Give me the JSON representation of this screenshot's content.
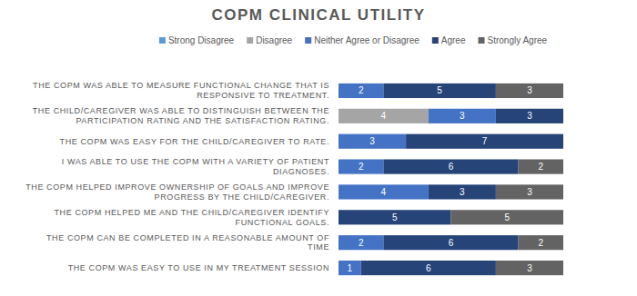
{
  "chart_data": {
    "type": "bar",
    "title": "COPM CLINICAL UTILITY",
    "orientation": "horizontal",
    "stacked": true,
    "data_labels": true,
    "legend": "top",
    "grid": false,
    "tick_labels": "y",
    "categories": [
      "THE COPM WAS ABLE TO MEASURE FUNCTIONAL CHANGE THAT IS RESPONSIVE TO TREATMENT.",
      "THE CHILD/CAREGIVER WAS ABLE TO DISTINGUISH BETWEEN THE PARTICIPATION RATING AND THE SATISFACTION RATING.",
      "THE COPM WAS EASY FOR THE CHILD/CAREGIVER TO RATE.",
      "I WAS ABLE TO USE THE COPM WITH A VARIETY OF PATIENT DIAGNOSES.",
      "THE COPM HELPED IMPROVE OWNERSHIP OF GOALS AND IMPROVE PROGRESS BY THE CHILD/CAREGIVER.",
      "THE COPM HELPED ME AND THE CHILD/CAREGIVER IDENTIFY FUNCTIONAL GOALS.",
      "THE COPM CAN BE COMPLETED IN A REASONABLE AMOUNT OF TIME",
      "THE COPM WAS EASY TO USE IN MY TREATMENT SESSION"
    ],
    "xlim": [
      0,
      10
    ],
    "series": [
      {
        "name": "Strong Disagree",
        "color": "#5b9bd5",
        "values": [
          null,
          null,
          null,
          null,
          null,
          null,
          null,
          null
        ]
      },
      {
        "name": "Disagree",
        "color": "#a5a5a5",
        "values": [
          null,
          4,
          null,
          null,
          null,
          null,
          null,
          null
        ]
      },
      {
        "name": "Neither Agree or Disagree",
        "color": "#4472c4",
        "values": [
          2,
          3,
          3,
          2,
          4,
          null,
          2,
          1
        ]
      },
      {
        "name": "Agree",
        "color": "#264478",
        "values": [
          5,
          3,
          7,
          6,
          3,
          5,
          6,
          6
        ]
      },
      {
        "name": "Strongly Agree",
        "color": "#636363",
        "values": [
          3,
          null,
          null,
          2,
          3,
          5,
          2,
          3
        ]
      }
    ]
  }
}
